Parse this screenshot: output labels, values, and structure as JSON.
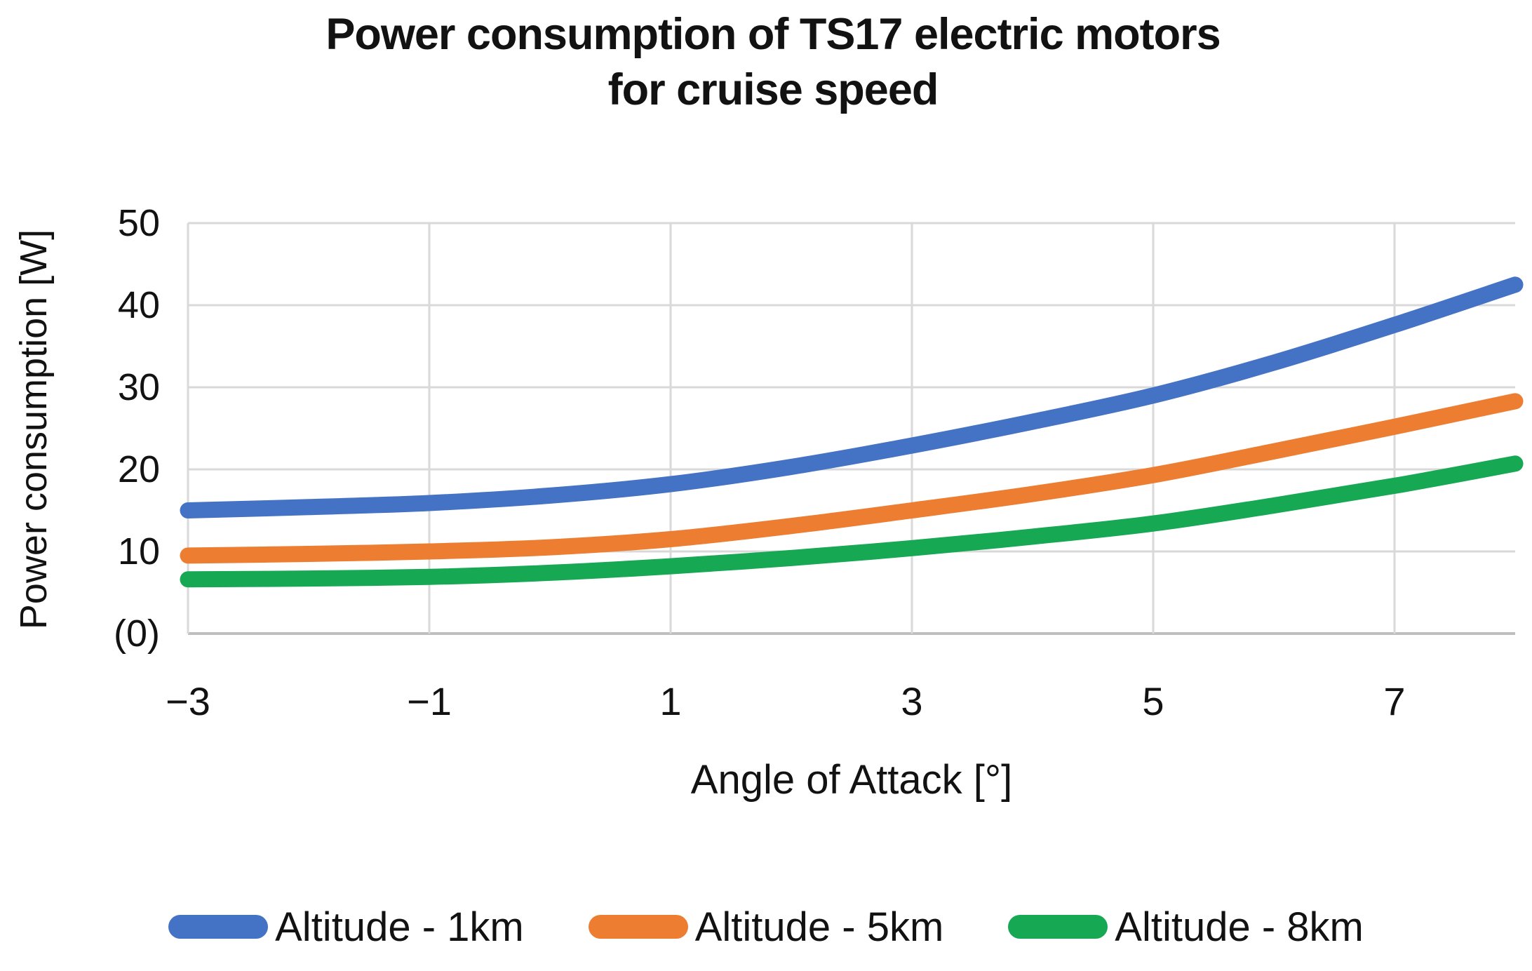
{
  "title": {
    "line1": "Power consumption of TS17 electric motors",
    "line2": "for cruise speed"
  },
  "colors": {
    "series_blue": "#4472C4",
    "series_orange": "#ED7D31",
    "series_green": "#17A854",
    "gridline": "#D9D9D9",
    "axis_line": "#BFBFBF",
    "text": "#121212",
    "background": "#FFFFFF"
  },
  "chart_data": {
    "type": "line",
    "title": "Power consumption of TS17 electric motors for cruise speed",
    "xlabel": "Angle of Attack [°]",
    "ylabel": "Power consumption [W]",
    "xlim": [
      -3,
      8
    ],
    "ylim": [
      0,
      50
    ],
    "grid": true,
    "legend_position": "bottom",
    "x": [
      -3,
      -2,
      -1,
      0,
      1,
      2,
      3,
      4,
      5,
      6,
      7,
      8
    ],
    "series": [
      {
        "name": "Altitude - 1km",
        "color": "#4472C4",
        "values": [
          15.0,
          15.4,
          15.9,
          16.8,
          18.2,
          20.3,
          22.9,
          25.8,
          29.0,
          33.0,
          37.6,
          42.5
        ]
      },
      {
        "name": "Altitude - 5km",
        "color": "#ED7D31",
        "values": [
          9.5,
          9.7,
          10.0,
          10.5,
          11.5,
          13.1,
          15.0,
          17.0,
          19.3,
          22.2,
          25.2,
          28.3
        ]
      },
      {
        "name": "Altitude - 8km",
        "color": "#17A854",
        "values": [
          6.6,
          6.7,
          6.9,
          7.4,
          8.2,
          9.2,
          10.4,
          11.8,
          13.4,
          15.6,
          18.0,
          20.7
        ]
      }
    ],
    "x_ticks": [
      {
        "value": -3,
        "label": "−3"
      },
      {
        "value": -1,
        "label": "−1"
      },
      {
        "value": 1,
        "label": "1"
      },
      {
        "value": 3,
        "label": "3"
      },
      {
        "value": 5,
        "label": "5"
      },
      {
        "value": 7,
        "label": "7"
      }
    ],
    "y_ticks": [
      {
        "value": 50,
        "label": "50"
      },
      {
        "value": 40,
        "label": "40"
      },
      {
        "value": 30,
        "label": "30"
      },
      {
        "value": 20,
        "label": "20"
      },
      {
        "value": 10,
        "label": "10"
      },
      {
        "value": 0,
        "label": "(0)"
      }
    ]
  }
}
